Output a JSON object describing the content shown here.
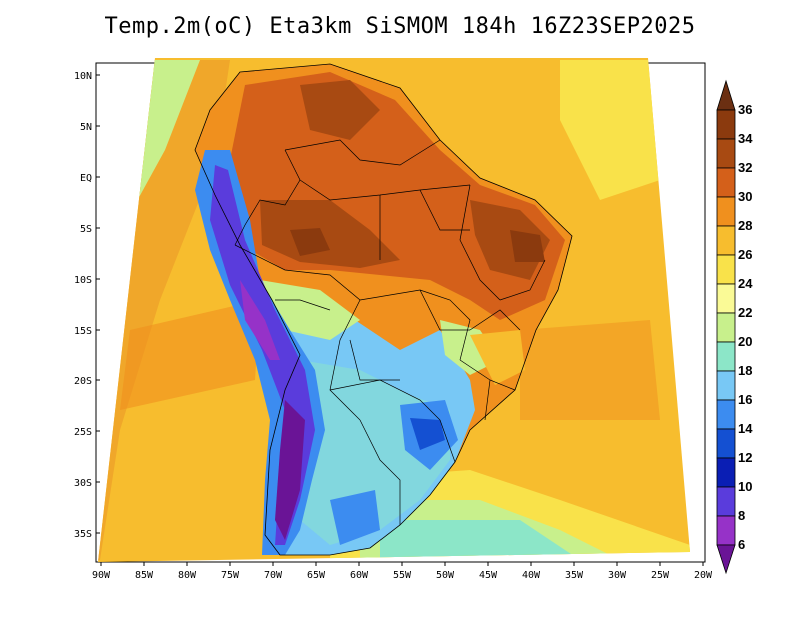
{
  "title": "Temp.2m(oC) Eta3km SiSMOM 184h 16Z23SEP2025",
  "map": {
    "lat_labels": [
      "10N",
      "5N",
      "EQ",
      "5S",
      "10S",
      "15S",
      "20S",
      "25S",
      "30S",
      "35S"
    ],
    "lon_labels": [
      "90W",
      "85W",
      "80W",
      "75W",
      "70W",
      "65W",
      "60W",
      "55W",
      "50W",
      "45W",
      "40W",
      "35W",
      "30W",
      "25W",
      "20W"
    ]
  },
  "colorbar": {
    "labels": [
      "36",
      "34",
      "32",
      "30",
      "28",
      "26",
      "24",
      "22",
      "20",
      "18",
      "16",
      "14",
      "12",
      "10",
      "8",
      "6"
    ],
    "colors_top_to_bottom": [
      "#6b2f12",
      "#8b3a0e",
      "#a84a12",
      "#d4601a",
      "#f0901e",
      "#f7bd2e",
      "#f9e24a",
      "#fafa96",
      "#c8f08c",
      "#8ce6c8",
      "#78c8f5",
      "#3c8cf0",
      "#1450d2",
      "#0a1eb4",
      "#5a3cdc",
      "#9632c8",
      "#6a1496"
    ]
  }
}
